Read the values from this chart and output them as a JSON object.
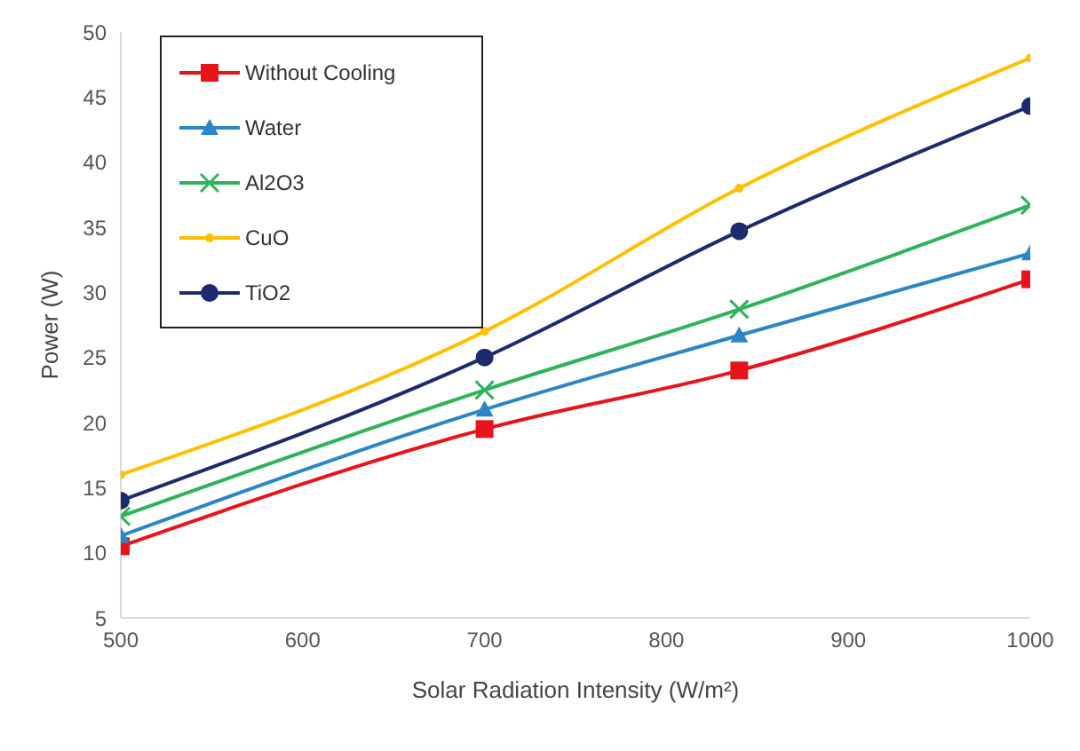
{
  "chart_data": {
    "type": "line",
    "xlabel": "Solar Radiation Intensity (W/m²)",
    "ylabel": "Power (W)",
    "x": [
      500,
      700,
      840,
      1000
    ],
    "series": [
      {
        "name": "Without Cooling",
        "color": "#e8141b",
        "marker": "square",
        "values": [
          10.5,
          19.5,
          24,
          31
        ]
      },
      {
        "name": "Water",
        "color": "#2b86c5",
        "marker": "triangle",
        "values": [
          11.3,
          21,
          26.7,
          33
        ]
      },
      {
        "name": "Al2O3",
        "color": "#2fb35a",
        "marker": "cross",
        "values": [
          12.8,
          22.5,
          28.7,
          36.7
        ]
      },
      {
        "name": "CuO",
        "color": "#ffc000",
        "marker": "circle",
        "values": [
          16,
          27,
          38,
          48
        ]
      },
      {
        "name": "TiO2",
        "color": "#1c2a6e",
        "marker": "circle",
        "values": [
          14,
          25,
          34.7,
          44.3
        ]
      }
    ],
    "xlim": [
      500,
      1000
    ],
    "xticks": [
      500,
      600,
      700,
      800,
      900,
      1000
    ],
    "ylim": [
      5,
      50
    ],
    "yticks": [
      5,
      10,
      15,
      20,
      25,
      30,
      35,
      40,
      45,
      50
    ],
    "grid": false,
    "legend": "top left"
  }
}
